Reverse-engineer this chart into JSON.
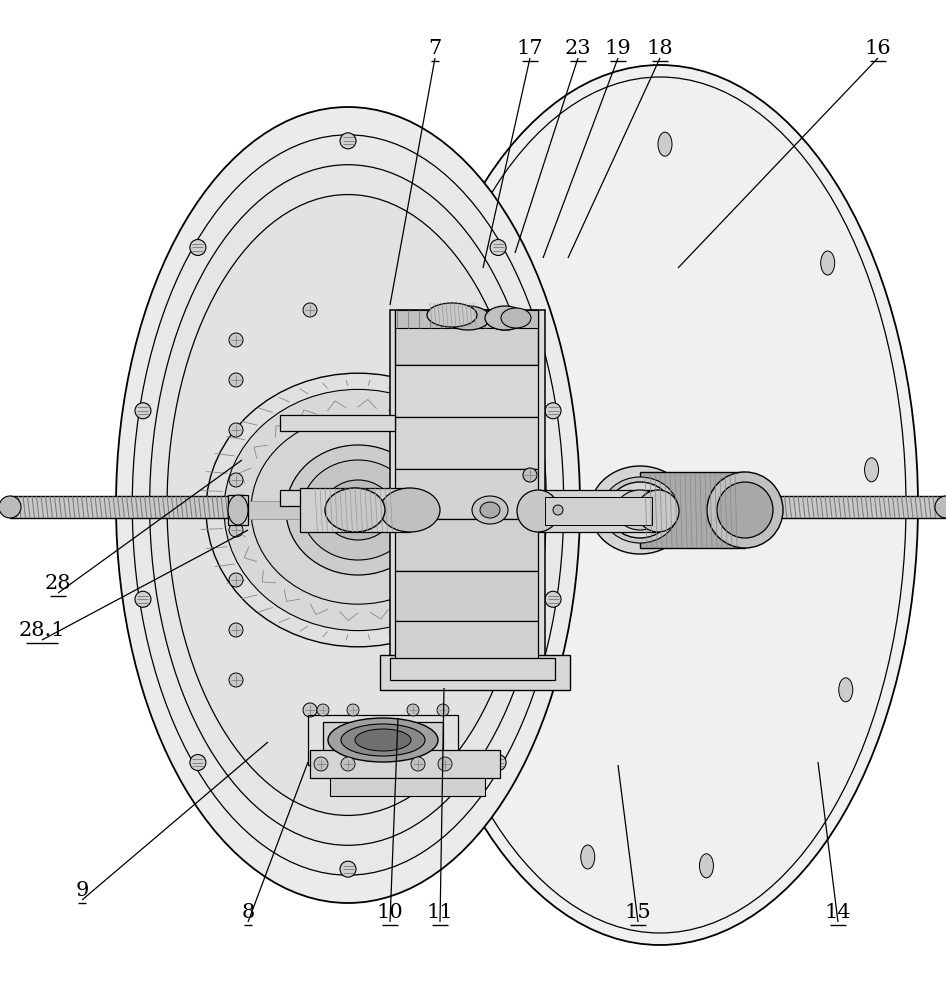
{
  "bg_color": "#ffffff",
  "lc": "#000000",
  "figsize": [
    9.46,
    10.0
  ],
  "dpi": 100,
  "annotations": [
    [
      "7",
      435,
      58,
      390,
      305
    ],
    [
      "17",
      530,
      58,
      483,
      268
    ],
    [
      "23",
      578,
      58,
      515,
      253
    ],
    [
      "19",
      618,
      58,
      543,
      258
    ],
    [
      "18",
      660,
      58,
      568,
      258
    ],
    [
      "16",
      878,
      58,
      678,
      268
    ],
    [
      "28",
      58,
      593,
      242,
      460
    ],
    [
      "28.1",
      42,
      640,
      248,
      530
    ],
    [
      "9",
      82,
      900,
      268,
      742
    ],
    [
      "8",
      248,
      922,
      308,
      762
    ],
    [
      "10",
      390,
      922,
      398,
      718
    ],
    [
      "11",
      440,
      922,
      444,
      688
    ],
    [
      "15",
      638,
      922,
      618,
      765
    ],
    [
      "14",
      838,
      922,
      818,
      762
    ]
  ]
}
